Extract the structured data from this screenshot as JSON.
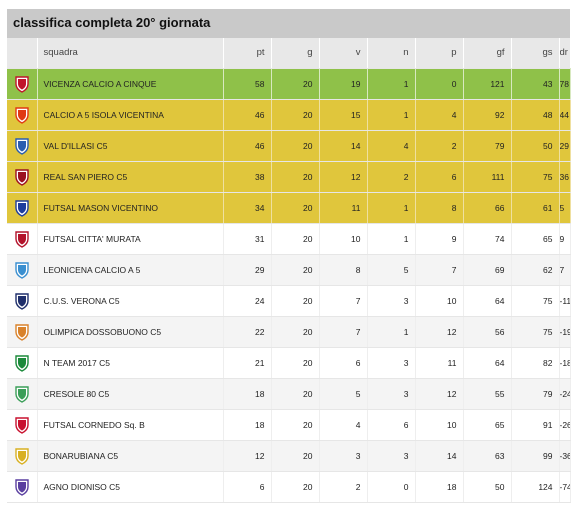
{
  "title": "classifica completa 20° giornata",
  "columns": {
    "team": "squadra",
    "pt": "pt",
    "g": "g",
    "v": "v",
    "n": "n",
    "p": "p",
    "gf": "gf",
    "gs": "gs",
    "dr": "dr"
  },
  "rows": [
    {
      "team": "VICENZA CALCIO A CINQUE",
      "pt": "58",
      "g": "20",
      "v": "19",
      "n": "1",
      "p": "0",
      "gf": "121",
      "gs": "43",
      "dr": "78",
      "logo": "vicenza-crest-icon",
      "color": "#c0142b"
    },
    {
      "team": "CALCIO A 5 ISOLA VICENTINA",
      "pt": "46",
      "g": "20",
      "v": "15",
      "n": "1",
      "p": "4",
      "gf": "92",
      "gs": "48",
      "dr": "44",
      "logo": "isola-crest-icon",
      "color": "#e03a12"
    },
    {
      "team": "VAL D'ILLASI C5",
      "pt": "46",
      "g": "20",
      "v": "14",
      "n": "4",
      "p": "2",
      "gf": "79",
      "gs": "50",
      "dr": "29",
      "logo": "val-illasi-crest-icon",
      "color": "#2a5db0"
    },
    {
      "team": "REAL SAN PIERO C5",
      "pt": "38",
      "g": "20",
      "v": "12",
      "n": "2",
      "p": "6",
      "gf": "111",
      "gs": "75",
      "dr": "36",
      "logo": "real-san-piero-crest-icon",
      "color": "#9b1020"
    },
    {
      "team": "FUTSAL MASON VICENTINO",
      "pt": "34",
      "g": "20",
      "v": "11",
      "n": "1",
      "p": "8",
      "gf": "66",
      "gs": "61",
      "dr": "5",
      "logo": "mason-crest-icon",
      "color": "#1d3c9c"
    },
    {
      "team": "FUTSAL CITTA' MURATA",
      "pt": "31",
      "g": "20",
      "v": "10",
      "n": "1",
      "p": "9",
      "gf": "74",
      "gs": "65",
      "dr": "9",
      "logo": "citta-murata-crest-icon",
      "color": "#b3132b"
    },
    {
      "team": "LEONICENA CALCIO A 5",
      "pt": "29",
      "g": "20",
      "v": "8",
      "n": "5",
      "p": "7",
      "gf": "69",
      "gs": "62",
      "dr": "7",
      "logo": "leonicena-crest-icon",
      "color": "#3a8fd0"
    },
    {
      "team": "C.U.S. VERONA C5",
      "pt": "24",
      "g": "20",
      "v": "7",
      "n": "3",
      "p": "10",
      "gf": "64",
      "gs": "75",
      "dr": "-11",
      "logo": "cus-verona-crest-icon",
      "color": "#1f2f6b"
    },
    {
      "team": "OLIMPICA DOSSOBUONO C5",
      "pt": "22",
      "g": "20",
      "v": "7",
      "n": "1",
      "p": "12",
      "gf": "56",
      "gs": "75",
      "dr": "-19",
      "logo": "olimpica-crest-icon",
      "color": "#d9822b"
    },
    {
      "team": "N TEAM 2017 C5",
      "pt": "21",
      "g": "20",
      "v": "6",
      "n": "3",
      "p": "11",
      "gf": "64",
      "gs": "82",
      "dr": "-18",
      "logo": "n-team-crest-icon",
      "color": "#1b8a3a"
    },
    {
      "team": "CRESOLE 80 C5",
      "pt": "18",
      "g": "20",
      "v": "5",
      "n": "3",
      "p": "12",
      "gf": "55",
      "gs": "79",
      "dr": "-24",
      "logo": "cresole-crest-icon",
      "color": "#3a9e58"
    },
    {
      "team": "FUTSAL CORNEDO Sq. B",
      "pt": "18",
      "g": "20",
      "v": "4",
      "n": "6",
      "p": "10",
      "gf": "65",
      "gs": "91",
      "dr": "-26",
      "logo": "cornedo-crest-icon",
      "color": "#c8102e"
    },
    {
      "team": "BONARUBIANA C5",
      "pt": "12",
      "g": "20",
      "v": "3",
      "n": "3",
      "p": "14",
      "gf": "63",
      "gs": "99",
      "dr": "-36",
      "logo": "bonarubiana-crest-icon",
      "color": "#d8b021"
    },
    {
      "team": "AGNO DIONISO C5",
      "pt": "6",
      "g": "20",
      "v": "2",
      "n": "0",
      "p": "18",
      "gf": "50",
      "gs": "124",
      "dr": "-74",
      "logo": "agno-dioniso-crest-icon",
      "color": "#5a3fa0"
    }
  ]
}
